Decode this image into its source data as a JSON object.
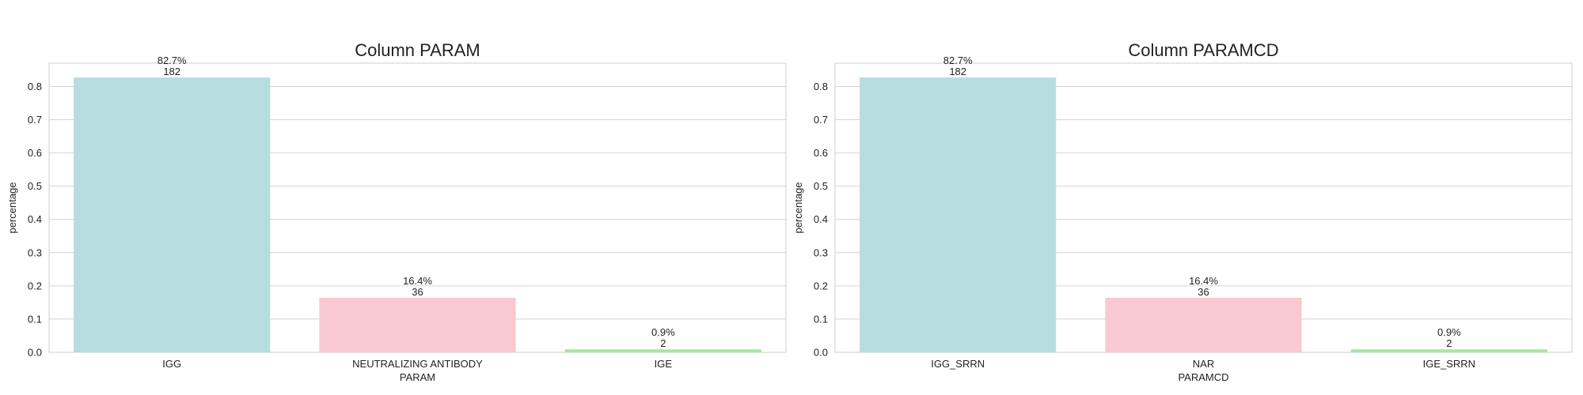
{
  "chart_data": [
    {
      "type": "bar",
      "title": "Column PARAM",
      "xlabel": "PARAM",
      "ylabel": "percentage",
      "categories": [
        "IGG",
        "NEUTRALIZING ANTIBODY",
        "IGE"
      ],
      "values": [
        0.827,
        0.164,
        0.009
      ],
      "counts": [
        "182",
        "36",
        "2"
      ],
      "percent_labels": [
        "82.7%",
        "16.4%",
        "0.9%"
      ],
      "colors": [
        "#b8dde1",
        "#f8c9d0",
        "#a3e8a0"
      ],
      "ylim": [
        0,
        0.87
      ],
      "yticks": [
        0.0,
        0.1,
        0.2,
        0.3,
        0.4,
        0.5,
        0.6,
        0.7,
        0.8
      ],
      "ytick_labels": [
        "0.0",
        "0.1",
        "0.2",
        "0.3",
        "0.4",
        "0.5",
        "0.6",
        "0.7",
        "0.8"
      ],
      "grid": true,
      "legend": false
    },
    {
      "type": "bar",
      "title": "Column PARAMCD",
      "xlabel": "PARAMCD",
      "ylabel": "percentage",
      "categories": [
        "IGG_SRRN",
        "NAR",
        "IGE_SRRN"
      ],
      "values": [
        0.827,
        0.164,
        0.009
      ],
      "counts": [
        "182",
        "36",
        "2"
      ],
      "percent_labels": [
        "82.7%",
        "16.4%",
        "0.9%"
      ],
      "colors": [
        "#b8dde1",
        "#f8c9d0",
        "#a3e8a0"
      ],
      "ylim": [
        0,
        0.87
      ],
      "yticks": [
        0.0,
        0.1,
        0.2,
        0.3,
        0.4,
        0.5,
        0.6,
        0.7,
        0.8
      ],
      "ytick_labels": [
        "0.0",
        "0.1",
        "0.2",
        "0.3",
        "0.4",
        "0.5",
        "0.6",
        "0.7",
        "0.8"
      ],
      "grid": true,
      "legend": false
    }
  ]
}
